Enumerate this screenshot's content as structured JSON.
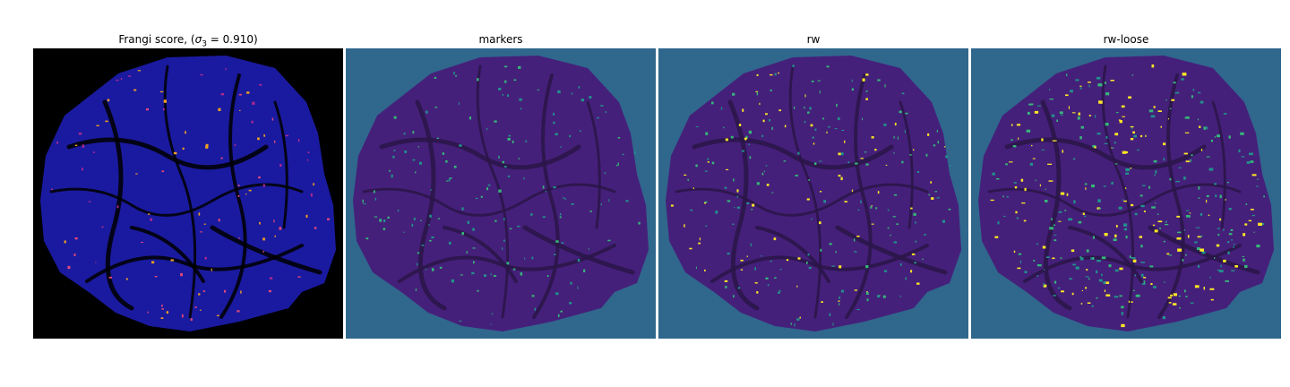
{
  "panels": [
    {
      "id": "frangi",
      "title_prefix": "Frangi score, (",
      "title_symbol": "σ",
      "title_sub": "3",
      "title_suffix": " = 0.910)",
      "background": "#000000",
      "base_color": "#1a1aa0",
      "vessel_color": "#000000",
      "accent_colors": [
        "#e0487a",
        "#f0a020",
        "#b02890"
      ]
    },
    {
      "id": "markers",
      "title": "markers",
      "background": "#30678d",
      "base_color": "#45207a",
      "vessel_color": "#2a1548",
      "accent_colors": [
        "#21918c",
        "#35b779"
      ]
    },
    {
      "id": "rw",
      "title": "rw",
      "background": "#30678d",
      "base_color": "#45207a",
      "vessel_color": "#2a1548",
      "accent_colors": [
        "#21918c",
        "#35b779",
        "#fde725"
      ]
    },
    {
      "id": "rw-loose",
      "title": "rw-loose",
      "background": "#30678d",
      "base_color": "#45207a",
      "vessel_color": "#2a1548",
      "accent_colors": [
        "#21918c",
        "#35b779",
        "#fde725"
      ]
    }
  ]
}
